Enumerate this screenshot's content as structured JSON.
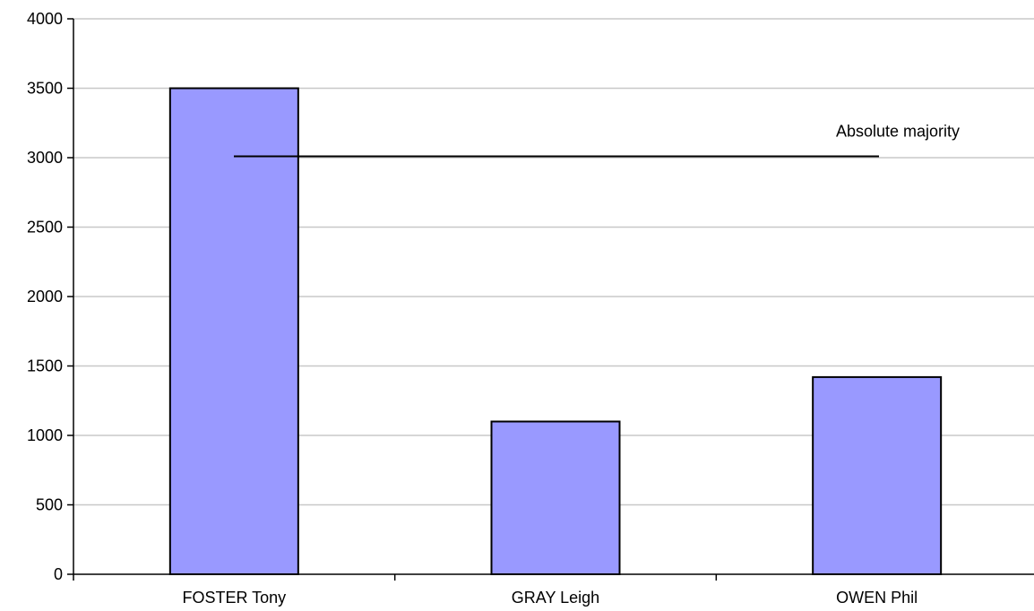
{
  "chart_data": {
    "type": "bar",
    "title": "",
    "xlabel": "",
    "ylabel": "",
    "categories": [
      "FOSTER Tony",
      "GRAY Leigh",
      "OWEN Phil"
    ],
    "series": [
      {
        "values": [
          3500,
          1100,
          1420
        ]
      }
    ],
    "ylim": [
      0,
      4000
    ],
    "yticks": [
      "0",
      "500",
      "1000",
      "1500",
      "2000",
      "2500",
      "3000",
      "3500",
      "4000"
    ],
    "grid": true,
    "legend": "none",
    "reference_line": {
      "label": "Absolute majority",
      "value": 3010
    },
    "colors": {
      "bar_fill": "#9999ff",
      "bar_stroke": "#000000",
      "grid": "#c8c8c8",
      "axis": "#000000",
      "reference_line": "#000000"
    }
  }
}
